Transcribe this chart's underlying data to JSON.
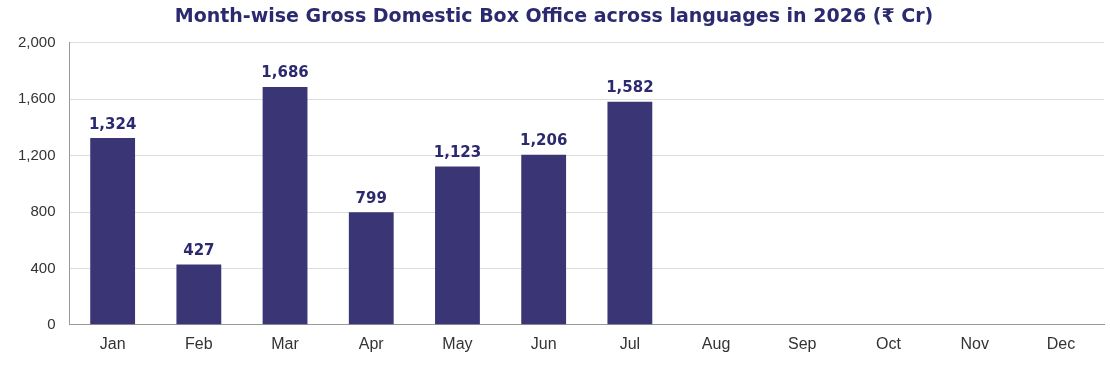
{
  "chart_data": {
    "type": "bar",
    "title": "Month-wise Gross Domestic Box Office across languages in 2026 (₹ Cr)",
    "categories": [
      "Jan",
      "Feb",
      "Mar",
      "Apr",
      "May",
      "Jun",
      "Jul",
      "Aug",
      "Sep",
      "Oct",
      "Nov",
      "Dec"
    ],
    "values": [
      1324,
      427,
      1686,
      799,
      1123,
      1206,
      1582,
      null,
      null,
      null,
      null,
      null
    ],
    "color": "#3a3575",
    "ylim": [
      0,
      2000
    ],
    "yticks": [
      {
        "value": 0,
        "label": "0"
      },
      {
        "value": 400,
        "label": "400"
      },
      {
        "value": 800,
        "label": "800"
      },
      {
        "value": 1200,
        "label": "1,200"
      },
      {
        "value": 1600,
        "label": "1,600"
      },
      {
        "value": 2000,
        "label": "2,000"
      }
    ],
    "value_labels": [
      "1,324",
      "427",
      "1,686",
      "799",
      "1,123",
      "1,206",
      "1,582",
      null,
      null,
      null,
      null,
      null
    ],
    "grid": "y",
    "legend": false
  }
}
